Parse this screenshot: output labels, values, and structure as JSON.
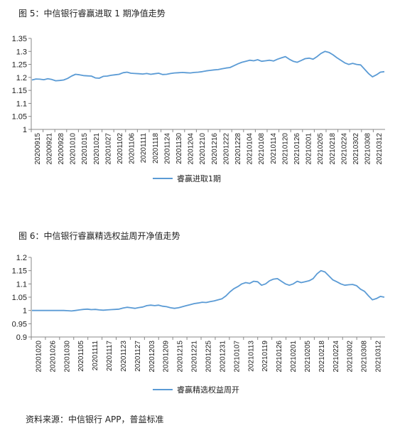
{
  "figures": {
    "fig5_title": "图 5：中信银行睿赢进取 1 期净值走势",
    "fig6_title": "图 6：中信银行睿赢精选权益周开净值走势"
  },
  "source_note": "资料来源：中信银行 APP，普益标准",
  "chart_data": [
    {
      "type": "line",
      "title": "图 5：中信银行睿赢进取 1 期净值走势",
      "xlabel": "",
      "ylabel": "",
      "ylim": [
        1,
        1.35
      ],
      "yticks": [
        "1.35",
        "1.3",
        "1.25",
        "1.2",
        "1.15",
        "1.1",
        "1.05",
        "1"
      ],
      "grid": false,
      "legend_position": "bottom",
      "color": "#5b9bd5",
      "x_tick_labels": [
        "20200915",
        "20200921",
        "20200928",
        "20201010",
        "20201015",
        "20201021",
        "20201027",
        "20201102",
        "20201106",
        "20201111",
        "20201118",
        "20201124",
        "20201130",
        "20201204",
        "20201210",
        "20201216",
        "20201222",
        "20201228",
        "20210104",
        "20210108",
        "20210114",
        "20210120",
        "20210126",
        "20210201",
        "20210205",
        "20210218",
        "20210224",
        "20210302",
        "20210308",
        "20210312"
      ],
      "series": [
        {
          "name": "睿赢进取1期",
          "values": [
            1.19,
            1.194,
            1.193,
            1.191,
            1.195,
            1.192,
            1.187,
            1.188,
            1.19,
            1.196,
            1.205,
            1.212,
            1.21,
            1.207,
            1.206,
            1.205,
            1.198,
            1.197,
            1.204,
            1.205,
            1.208,
            1.21,
            1.212,
            1.218,
            1.22,
            1.216,
            1.215,
            1.214,
            1.213,
            1.215,
            1.212,
            1.214,
            1.216,
            1.211,
            1.212,
            1.215,
            1.217,
            1.218,
            1.219,
            1.218,
            1.217,
            1.219,
            1.22,
            1.222,
            1.225,
            1.227,
            1.229,
            1.23,
            1.233,
            1.236,
            1.238,
            1.245,
            1.252,
            1.258,
            1.262,
            1.266,
            1.264,
            1.268,
            1.262,
            1.264,
            1.266,
            1.263,
            1.27,
            1.275,
            1.28,
            1.27,
            1.262,
            1.258,
            1.265,
            1.272,
            1.274,
            1.27,
            1.28,
            1.292,
            1.3,
            1.296,
            1.287,
            1.276,
            1.266,
            1.256,
            1.25,
            1.254,
            1.25,
            1.248,
            1.232,
            1.215,
            1.202,
            1.21,
            1.22,
            1.222
          ]
        }
      ]
    },
    {
      "type": "line",
      "title": "图 6：中信银行睿赢精选权益周开净值走势",
      "xlabel": "",
      "ylabel": "",
      "ylim": [
        0.9,
        1.2
      ],
      "yticks": [
        "1.2",
        "1.15",
        "1.1",
        "1.05",
        "1",
        "0.95",
        "0.9"
      ],
      "grid": false,
      "legend_position": "bottom",
      "color": "#5b9bd5",
      "x_tick_labels": [
        "20201020",
        "20201026",
        "20201030",
        "20201105",
        "20201111",
        "20201117",
        "20201123",
        "20201127",
        "20201203",
        "20201209",
        "20201215",
        "20201221",
        "20201225",
        "20201231",
        "20210107",
        "20210113",
        "20210119",
        "20210126",
        "20210201",
        "20210205",
        "20210218",
        "20210224",
        "20210302",
        "20210308",
        "20210312"
      ],
      "series": [
        {
          "name": "睿赢精选权益周开",
          "values": [
            1.0,
            1.0,
            1.0,
            1.0,
            1.0,
            1.0,
            1.0,
            1.0,
            1.0,
            0.999,
            0.998,
            1.0,
            1.002,
            1.004,
            1.005,
            1.003,
            1.004,
            1.002,
            1.001,
            1.002,
            1.003,
            1.004,
            1.005,
            1.009,
            1.012,
            1.01,
            1.008,
            1.011,
            1.013,
            1.018,
            1.02,
            1.018,
            1.02,
            1.016,
            1.014,
            1.01,
            1.008,
            1.01,
            1.014,
            1.018,
            1.022,
            1.026,
            1.028,
            1.031,
            1.03,
            1.033,
            1.036,
            1.04,
            1.044,
            1.055,
            1.07,
            1.082,
            1.09,
            1.1,
            1.105,
            1.102,
            1.11,
            1.108,
            1.095,
            1.1,
            1.112,
            1.118,
            1.12,
            1.11,
            1.1,
            1.095,
            1.1,
            1.11,
            1.105,
            1.108,
            1.112,
            1.12,
            1.138,
            1.15,
            1.145,
            1.13,
            1.115,
            1.108,
            1.1,
            1.095,
            1.097,
            1.098,
            1.093,
            1.08,
            1.072,
            1.055,
            1.04,
            1.045,
            1.053,
            1.05
          ]
        }
      ]
    }
  ]
}
